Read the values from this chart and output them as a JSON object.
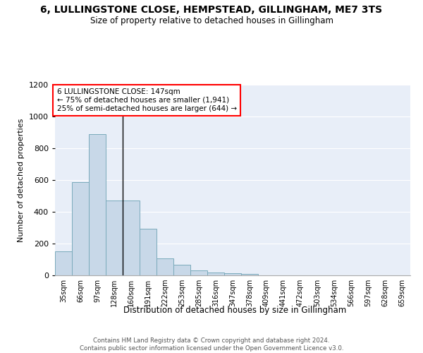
{
  "title1": "6, LULLINGSTONE CLOSE, HEMPSTEAD, GILLINGHAM, ME7 3TS",
  "title2": "Size of property relative to detached houses in Gillingham",
  "xlabel": "Distribution of detached houses by size in Gillingham",
  "ylabel": "Number of detached properties",
  "categories": [
    "35sqm",
    "66sqm",
    "97sqm",
    "128sqm",
    "160sqm",
    "191sqm",
    "222sqm",
    "253sqm",
    "285sqm",
    "316sqm",
    "347sqm",
    "378sqm",
    "409sqm",
    "441sqm",
    "472sqm",
    "503sqm",
    "534sqm",
    "566sqm",
    "597sqm",
    "628sqm",
    "659sqm"
  ],
  "values": [
    150,
    585,
    890,
    470,
    470,
    295,
    105,
    65,
    30,
    20,
    15,
    10,
    0,
    0,
    0,
    0,
    0,
    0,
    0,
    0,
    0
  ],
  "bar_color": "#c8d8e8",
  "bar_edge_color": "#7aaabb",
  "bg_color": "#e8eef8",
  "annotation_text": "6 LULLINGSTONE CLOSE: 147sqm\n← 75% of detached houses are smaller (1,941)\n25% of semi-detached houses are larger (644) →",
  "vline_x": 3.5,
  "ylim": [
    0,
    1200
  ],
  "yticks": [
    0,
    200,
    400,
    600,
    800,
    1000,
    1200
  ],
  "footer1": "Contains HM Land Registry data © Crown copyright and database right 2024.",
  "footer2": "Contains public sector information licensed under the Open Government Licence v3.0."
}
